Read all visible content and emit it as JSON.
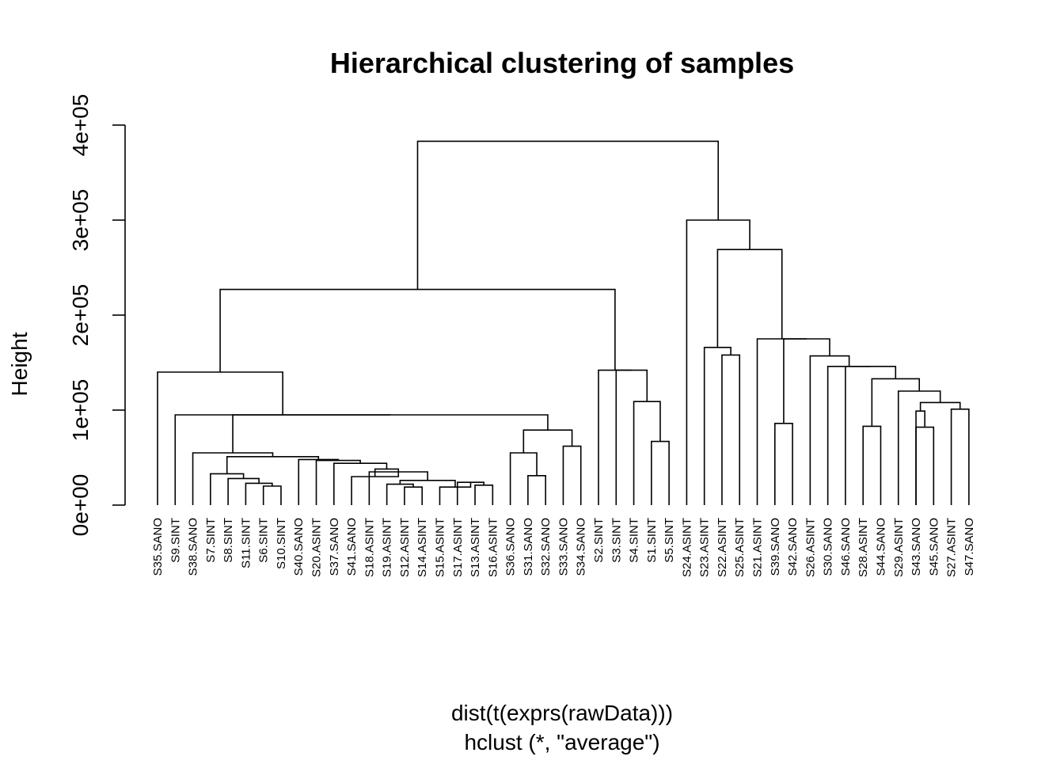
{
  "chart_data": {
    "type": "dendrogram",
    "title": "Hierarchical clustering of samples",
    "ylabel": "Height",
    "xlabel": "dist(t(exprs(rawData)))",
    "sub": "hclust (*, \"average\")",
    "ylim": [
      0,
      400000
    ],
    "y_ticks": [
      0,
      100000,
      200000,
      300000,
      400000
    ],
    "y_tick_labels": [
      "0e+00",
      "1e+05",
      "2e+05",
      "3e+05",
      "4e+05"
    ],
    "leaves": [
      "S35.SANO",
      "S9.SINT",
      "S38.SANO",
      "S7.SINT",
      "S8.SINT",
      "S11.SINT",
      "S6.SINT",
      "S10.SINT",
      "S40.SANO",
      "S20.ASINT",
      "S37.SANO",
      "S41.SANO",
      "S18.ASINT",
      "S19.ASINT",
      "S12.ASINT",
      "S14.ASINT",
      "S15.ASINT",
      "S17.ASINT",
      "S13.ASINT",
      "S16.ASINT",
      "S36.SANO",
      "S31.SANO",
      "S32.SANO",
      "S33.SANO",
      "S34.SANO",
      "S2.SINT",
      "S3.SINT",
      "S4.SINT",
      "S1.SINT",
      "S5.SINT",
      "S24.ASINT",
      "S23.ASINT",
      "S22.ASINT",
      "S25.ASINT",
      "S21.ASINT",
      "S39.SANO",
      "S42.SANO",
      "S26.ASINT",
      "S30.SANO",
      "S46.SANO",
      "S28.ASINT",
      "S44.SANO",
      "S29.ASINT",
      "S43.SANO",
      "S45.SANO",
      "S27.ASINT",
      "S47.SANO"
    ],
    "merges": [
      {
        "a": "S6.SINT",
        "b": "S10.SINT",
        "height": 20000
      },
      {
        "a": "S11.SINT",
        "b": "m1",
        "height": 23000
      },
      {
        "a": "S8.SINT",
        "b": "m2",
        "height": 28000
      },
      {
        "a": "S7.SINT",
        "b": "m3",
        "height": 33000
      },
      {
        "a": "S12.ASINT",
        "b": "S14.ASINT",
        "height": 19000
      },
      {
        "a": "S19.ASINT",
        "b": "m5",
        "height": 22000
      },
      {
        "a": "S13.ASINT",
        "b": "S16.ASINT",
        "height": 21000
      },
      {
        "a": "S17.ASINT",
        "b": "m7",
        "height": 24000
      },
      {
        "a": "S15.ASINT",
        "b": "m8",
        "height": 19000
      },
      {
        "a": "m6",
        "b": "m9",
        "height": 26000
      },
      {
        "a": "S18.ASINT",
        "b": "m10",
        "height": 35000
      },
      {
        "a": "S41.SANO",
        "b": "m11",
        "height": 30000
      },
      {
        "a": "m12",
        "b": "m11",
        "height": 38000
      },
      {
        "a": "S37.SANO",
        "b": "m13",
        "height": 44000
      },
      {
        "a": "S20.ASINT",
        "b": "m14",
        "height": 47000
      },
      {
        "a": "S40.SANO",
        "b": "m15",
        "height": 48000
      },
      {
        "a": "m4",
        "b": "m16",
        "height": 51000
      },
      {
        "a": "S38.SANO",
        "b": "m17",
        "height": 55000
      },
      {
        "a": "S32.SANO",
        "b": "S31.SANO",
        "height": 31000
      },
      {
        "a": "S36.SANO",
        "b": "m19",
        "height": 55000
      },
      {
        "a": "S33.SANO",
        "b": "S34.SANO",
        "height": 62000
      },
      {
        "a": "m20",
        "b": "m21",
        "height": 79000
      },
      {
        "a": "m18",
        "b": "m22",
        "height": 95000
      },
      {
        "a": "S9.SINT",
        "b": "m23",
        "height": 95000
      },
      {
        "a": "S35.SANO",
        "b": "m24",
        "height": 140000
      },
      {
        "a": "S1.SINT",
        "b": "S5.SINT",
        "height": 67000
      },
      {
        "a": "S4.SINT",
        "b": "m26",
        "height": 109000
      },
      {
        "a": "S3.SINT",
        "b": "m27",
        "height": 142000
      },
      {
        "a": "S2.SINT",
        "b": "m28",
        "height": 142000
      },
      {
        "a": "m25",
        "b": "m29",
        "height": 227000
      },
      {
        "a": "S22.ASINT",
        "b": "S25.ASINT",
        "height": 158000
      },
      {
        "a": "S23.ASINT",
        "b": "m31",
        "height": 166000
      },
      {
        "a": "S39.SANO",
        "b": "S42.SANO",
        "height": 86000
      },
      {
        "a": "S45.SANO",
        "b": "S43.SANO",
        "height": 82000
      },
      {
        "a": "m34",
        "b": "S43.SANO",
        "height": 99000
      },
      {
        "a": "S27.ASINT",
        "b": "S47.SANO",
        "height": 101000
      },
      {
        "a": "m35",
        "b": "m36",
        "height": 108000
      },
      {
        "a": "S29.ASINT",
        "b": "m37",
        "height": 120000
      },
      {
        "a": "S44.SANO",
        "b": "S28.ASINT",
        "height": 83000
      },
      {
        "a": "m39",
        "b": "m38",
        "height": 133000
      },
      {
        "a": "S46.SANO",
        "b": "m40",
        "height": 146000
      },
      {
        "a": "S30.SANO",
        "b": "m41",
        "height": 146000
      },
      {
        "a": "S26.ASINT",
        "b": "m42",
        "height": 157000
      },
      {
        "a": "m33",
        "b": "m43",
        "height": 175000
      },
      {
        "a": "S21.ASINT",
        "b": "m44",
        "height": 175000
      },
      {
        "a": "m32",
        "b": "m45",
        "height": 269000
      },
      {
        "a": "S24.ASINT",
        "b": "m46",
        "height": 300000
      },
      {
        "a": "m30",
        "b": "m47",
        "height": 383000
      }
    ]
  }
}
